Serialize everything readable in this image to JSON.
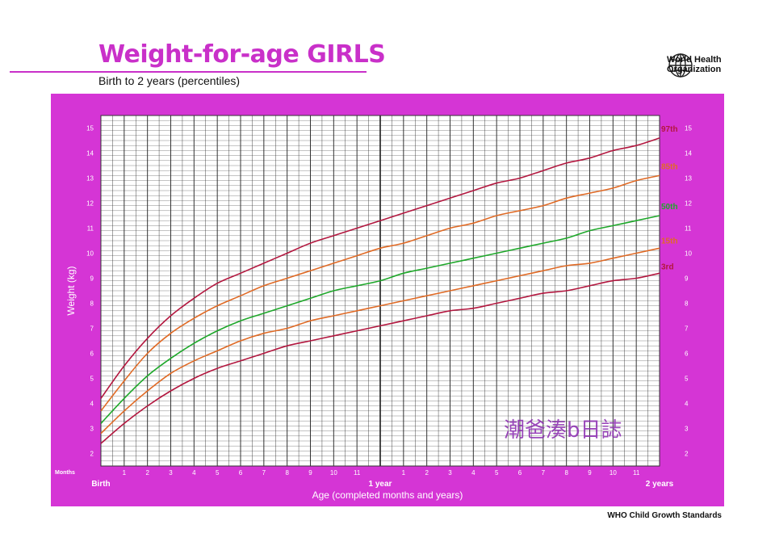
{
  "header": {
    "title": "Weight-for-age GIRLS",
    "subtitle": "Birth to 2 years (percentiles)"
  },
  "logo": {
    "line1": "World Health",
    "line2": "Organization"
  },
  "footer": "WHO Child Growth Standards",
  "watermark": "潮爸湊b日誌",
  "chart_data": {
    "type": "line",
    "title": "Weight-for-age GIRLS",
    "subtitle": "Birth to 2 years (percentiles)",
    "xlabel": "Age (completed months and years)",
    "ylabel": "Weight (kg)",
    "x_unit_label": "Months",
    "xlim": [
      0,
      24
    ],
    "ylim": [
      1.5,
      15.5
    ],
    "y_ticks": [
      2,
      3,
      4,
      5,
      6,
      7,
      8,
      9,
      10,
      11,
      12,
      13,
      14,
      15
    ],
    "x_tick_labels": [
      "Birth",
      "1",
      "2",
      "3",
      "4",
      "5",
      "6",
      "7",
      "8",
      "9",
      "10",
      "11",
      "1 year",
      "1",
      "2",
      "3",
      "4",
      "5",
      "6",
      "7",
      "8",
      "9",
      "10",
      "11",
      "2 years"
    ],
    "grid": true,
    "colors": {
      "frame": "#d535d5",
      "grid": "#555555",
      "text_on_frame": "#ffffff"
    },
    "x": [
      0,
      1,
      2,
      3,
      4,
      5,
      6,
      7,
      8,
      9,
      10,
      11,
      12,
      13,
      14,
      15,
      16,
      17,
      18,
      19,
      20,
      21,
      22,
      23,
      24
    ],
    "series": [
      {
        "name": "97th",
        "color": "#b3173f",
        "values": [
          4.2,
          5.5,
          6.6,
          7.5,
          8.2,
          8.8,
          9.2,
          9.6,
          10.0,
          10.4,
          10.7,
          11.0,
          11.3,
          11.6,
          11.9,
          12.2,
          12.5,
          12.8,
          13.0,
          13.3,
          13.6,
          13.8,
          14.1,
          14.3,
          14.6
        ]
      },
      {
        "name": "85th",
        "color": "#e06a25",
        "values": [
          3.7,
          4.9,
          6.0,
          6.8,
          7.4,
          7.9,
          8.3,
          8.7,
          9.0,
          9.3,
          9.6,
          9.9,
          10.2,
          10.4,
          10.7,
          11.0,
          11.2,
          11.5,
          11.7,
          11.9,
          12.2,
          12.4,
          12.6,
          12.9,
          13.1
        ]
      },
      {
        "name": "50th",
        "color": "#1ea82a",
        "values": [
          3.2,
          4.2,
          5.1,
          5.8,
          6.4,
          6.9,
          7.3,
          7.6,
          7.9,
          8.2,
          8.5,
          8.7,
          8.9,
          9.2,
          9.4,
          9.6,
          9.8,
          10.0,
          10.2,
          10.4,
          10.6,
          10.9,
          11.1,
          11.3,
          11.5
        ]
      },
      {
        "name": "15th",
        "color": "#e06a25",
        "values": [
          2.8,
          3.7,
          4.5,
          5.2,
          5.7,
          6.1,
          6.5,
          6.8,
          7.0,
          7.3,
          7.5,
          7.7,
          7.9,
          8.1,
          8.3,
          8.5,
          8.7,
          8.9,
          9.1,
          9.3,
          9.5,
          9.6,
          9.8,
          10.0,
          10.2
        ]
      },
      {
        "name": "3rd",
        "color": "#b3173f",
        "values": [
          2.4,
          3.2,
          3.9,
          4.5,
          5.0,
          5.4,
          5.7,
          6.0,
          6.3,
          6.5,
          6.7,
          6.9,
          7.1,
          7.3,
          7.5,
          7.7,
          7.8,
          8.0,
          8.2,
          8.4,
          8.5,
          8.7,
          8.9,
          9.0,
          9.2
        ]
      }
    ]
  }
}
